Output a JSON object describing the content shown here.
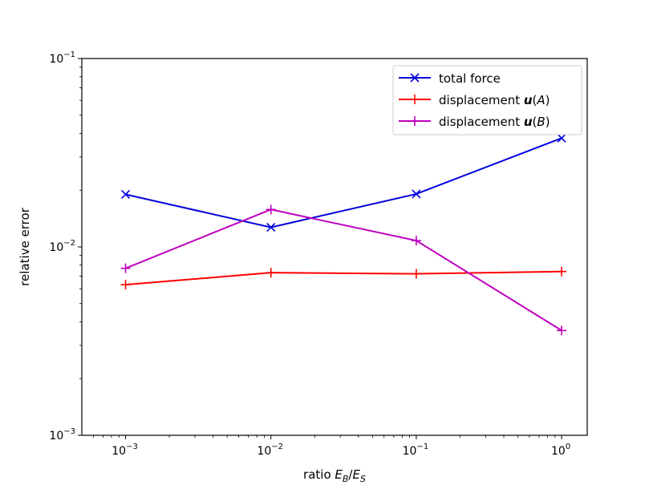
{
  "chart_data": {
    "type": "line",
    "title": "",
    "xlabel": "ratio E_B/E_S",
    "ylabel": "relative error",
    "x": [
      0.001,
      0.01,
      0.1,
      1
    ],
    "xscale": "log",
    "yscale": "log",
    "xlim": [
      0.0005,
      1.5
    ],
    "ylim": [
      0.001,
      0.1
    ],
    "x_ticks": [
      {
        "value": 0.001,
        "base": "10",
        "exp": "−3"
      },
      {
        "value": 0.01,
        "base": "10",
        "exp": "−2"
      },
      {
        "value": 0.1,
        "base": "10",
        "exp": "−1"
      },
      {
        "value": 1,
        "base": "10",
        "exp": "0"
      }
    ],
    "y_ticks": [
      {
        "value": 0.001,
        "base": "10",
        "exp": "−3"
      },
      {
        "value": 0.01,
        "base": "10",
        "exp": "−2"
      },
      {
        "value": 0.1,
        "base": "10",
        "exp": "−1"
      }
    ],
    "grid": false,
    "legend_position": "top-right",
    "series": [
      {
        "name": "total force",
        "color": "#0000dd",
        "marker": "x",
        "values": [
          0.019,
          0.0127,
          0.0191,
          0.0378
        ]
      },
      {
        "name": "displacement u(A)",
        "color": "#ff0000",
        "marker": "+",
        "values": [
          0.0063,
          0.0073,
          0.0072,
          0.0074
        ]
      },
      {
        "name": "displacement u(B)",
        "color": "#bf00bf",
        "marker": "+",
        "values": [
          0.0077,
          0.0158,
          0.0108,
          0.0036
        ]
      }
    ],
    "legend_labels": [
      {
        "prefix": "total force",
        "bold": "",
        "paren_open": "",
        "italic": "",
        "paren_close": ""
      },
      {
        "prefix": "displacement ",
        "bold": "u",
        "paren_open": "(",
        "italic": "A",
        "paren_close": ")"
      },
      {
        "prefix": "displacement ",
        "bold": "u",
        "paren_open": "(",
        "italic": "B",
        "paren_close": ")"
      }
    ],
    "xlabel_parts": {
      "prefix": "ratio ",
      "e1": "E",
      "s1": "B",
      "slash": "/",
      "e2": "E",
      "s2": "S"
    }
  }
}
